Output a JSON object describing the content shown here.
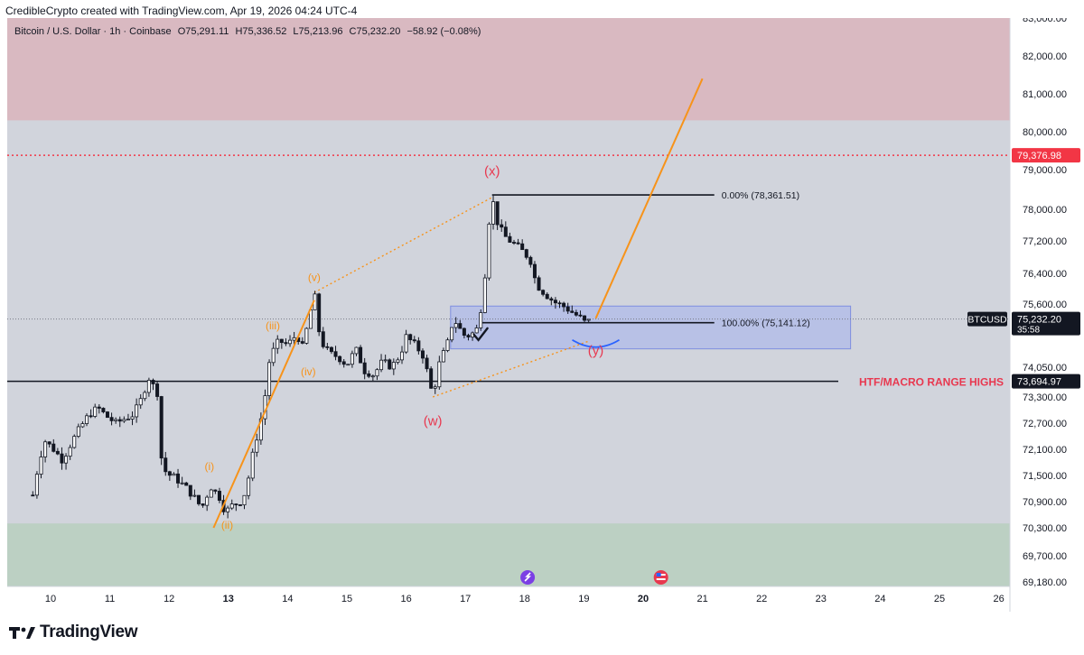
{
  "header": {
    "text": "CredibleCrypto created with TradingView.com, Apr 19, 2026 04:24 UTC-4"
  },
  "legend": {
    "symbol": "Bitcoin / U.S. Dollar · 1h · Coinbase",
    "open_label": "O",
    "open": "75,291.11",
    "high_label": "H",
    "high": "75,336.52",
    "low_label": "L",
    "low": "75,213.96",
    "close_label": "C",
    "close": "75,232.20",
    "change": "−58.92 (−0.08%)"
  },
  "footer": {
    "brand": "TradingView"
  },
  "colors": {
    "bg": "#d1d4dc",
    "zone_red": "#d9b9c1",
    "zone_green": "#bcd0c3",
    "box_blue": "#b4bde8",
    "orange": "#f7931a",
    "red_text": "#e8384f",
    "candle": "#131722"
  },
  "chart_data": {
    "type": "candlestick",
    "symbol_tag": "BTCUSD",
    "y_axis_ticks": [
      "83,000.00",
      "82,000.00",
      "81,000.00",
      "80,000.00",
      "79,000.00",
      "78,000.00",
      "77,200.00",
      "76,400.00",
      "75,600.00",
      "74,050.00",
      "73,300.00",
      "72,700.00",
      "72,100.00",
      "71,500.00",
      "70,900.00",
      "70,300.00",
      "69,700.00",
      "69,180.00"
    ],
    "x_axis_ticks": [
      {
        "label": "10",
        "bold": false
      },
      {
        "label": "11",
        "bold": false
      },
      {
        "label": "12",
        "bold": false
      },
      {
        "label": "13",
        "bold": true
      },
      {
        "label": "14",
        "bold": false
      },
      {
        "label": "15",
        "bold": false
      },
      {
        "label": "16",
        "bold": false
      },
      {
        "label": "17",
        "bold": false
      },
      {
        "label": "18",
        "bold": false
      },
      {
        "label": "19",
        "bold": false
      },
      {
        "label": "20",
        "bold": true
      },
      {
        "label": "21",
        "bold": false
      },
      {
        "label": "22",
        "bold": false
      },
      {
        "label": "23",
        "bold": false
      },
      {
        "label": "24",
        "bold": false
      },
      {
        "label": "25",
        "bold": false
      },
      {
        "label": "26",
        "bold": false
      }
    ],
    "price_path": [
      [
        9.7,
        71050
      ],
      [
        9.8,
        71800
      ],
      [
        9.9,
        72300
      ],
      [
        10.05,
        72100
      ],
      [
        10.2,
        71850
      ],
      [
        10.35,
        72250
      ],
      [
        10.5,
        72600
      ],
      [
        10.65,
        72900
      ],
      [
        10.8,
        73050
      ],
      [
        10.95,
        72850
      ],
      [
        11.1,
        72700
      ],
      [
        11.25,
        72800
      ],
      [
        11.4,
        72900
      ],
      [
        11.55,
        73300
      ],
      [
        11.65,
        73800
      ],
      [
        11.8,
        73400
      ],
      [
        11.85,
        72000
      ],
      [
        11.95,
        71550
      ],
      [
        12.1,
        71450
      ],
      [
        12.3,
        71200
      ],
      [
        12.45,
        70950
      ],
      [
        12.55,
        70750
      ],
      [
        12.7,
        71250
      ],
      [
        12.85,
        71000
      ],
      [
        12.95,
        70650
      ],
      [
        13.05,
        70800
      ],
      [
        13.2,
        70900
      ],
      [
        13.3,
        71150
      ],
      [
        13.4,
        71900
      ],
      [
        13.5,
        72500
      ],
      [
        13.6,
        73100
      ],
      [
        13.7,
        74300
      ],
      [
        13.85,
        74700
      ],
      [
        14.0,
        74600
      ],
      [
        14.15,
        74850
      ],
      [
        14.25,
        74550
      ],
      [
        14.35,
        75150
      ],
      [
        14.45,
        75900
      ],
      [
        14.55,
        74700
      ],
      [
        14.7,
        74400
      ],
      [
        14.85,
        74300
      ],
      [
        15.0,
        74100
      ],
      [
        15.15,
        74500
      ],
      [
        15.3,
        73950
      ],
      [
        15.45,
        73850
      ],
      [
        15.6,
        74200
      ],
      [
        15.75,
        74050
      ],
      [
        15.9,
        74350
      ],
      [
        16.0,
        74800
      ],
      [
        16.15,
        74600
      ],
      [
        16.3,
        74300
      ],
      [
        16.45,
        73300
      ],
      [
        16.55,
        74100
      ],
      [
        16.7,
        74650
      ],
      [
        16.8,
        75250
      ],
      [
        16.9,
        75000
      ],
      [
        17.0,
        74800
      ],
      [
        17.1,
        74850
      ],
      [
        17.2,
        75000
      ],
      [
        17.3,
        75800
      ],
      [
        17.4,
        77700
      ],
      [
        17.45,
        78300
      ],
      [
        17.55,
        77600
      ],
      [
        17.7,
        77250
      ],
      [
        17.85,
        77100
      ],
      [
        18.0,
        76900
      ],
      [
        18.1,
        76700
      ],
      [
        18.2,
        76100
      ],
      [
        18.35,
        75850
      ],
      [
        18.5,
        75650
      ],
      [
        18.65,
        75550
      ],
      [
        18.8,
        75400
      ],
      [
        18.95,
        75250
      ],
      [
        19.05,
        75100
      ],
      [
        19.1,
        75232
      ]
    ],
    "candle_every": 0.07,
    "zones": [
      {
        "name": "upper-red-zone",
        "from": 80300,
        "to": 83600,
        "color": "#d9b9c1"
      },
      {
        "name": "lower-green-zone",
        "from": 68700,
        "to": 70400,
        "color": "#bcd0c3"
      }
    ],
    "blue_box": {
      "x1": 16.75,
      "x2": 23.5,
      "y1": 74500,
      "y2": 75550
    },
    "fib_levels": [
      {
        "label": "0.00% (78,361.51)",
        "price": 78361.51,
        "x1": 17.45,
        "x2": 21.2
      },
      {
        "label": "100.00% (75,141.12)",
        "price": 75141.12,
        "x1": 17.25,
        "x2": 21.2
      }
    ],
    "red_dotted_level": {
      "price": 79376.98,
      "label": "79,376.98"
    },
    "htf_level": {
      "price": 73694.97,
      "label": "73,694.97",
      "text": "HTF/MACRO RANGE HIGHS"
    },
    "last_price": {
      "price": 75232.2,
      "label": "75,232.20",
      "countdown": "35:58"
    },
    "orange_trend_1": {
      "x1": 12.75,
      "y1": 70300,
      "x2": 14.45,
      "y2": 75700
    },
    "orange_projection": {
      "x1": 19.2,
      "y1": 75250,
      "x2": 21.0,
      "y2": 81400
    },
    "orange_dotted_upper": {
      "x1": 14.45,
      "y1": 75900,
      "x2": 17.45,
      "y2": 78300
    },
    "orange_dotted_lower": {
      "x1": 16.45,
      "y1": 73300,
      "x2": 19.1,
      "y2": 74700
    },
    "wave_labels": [
      {
        "text": "(i)",
        "x": 12.68,
        "price": 71620,
        "color": "orange"
      },
      {
        "text": "(ii)",
        "x": 12.98,
        "price": 70280,
        "color": "orange"
      },
      {
        "text": "(iii)",
        "x": 13.75,
        "price": 74980,
        "color": "orange"
      },
      {
        "text": "(iv)",
        "x": 14.35,
        "price": 73850,
        "color": "orange"
      },
      {
        "text": "(v)",
        "x": 14.45,
        "price": 76200,
        "color": "orange"
      },
      {
        "text": "(w)",
        "x": 16.45,
        "price": 72650,
        "color": "red"
      },
      {
        "text": "(x)",
        "x": 17.45,
        "price": 78850,
        "color": "red"
      },
      {
        "text": "(y)",
        "x": 19.2,
        "price": 74350,
        "color": "red"
      }
    ]
  }
}
